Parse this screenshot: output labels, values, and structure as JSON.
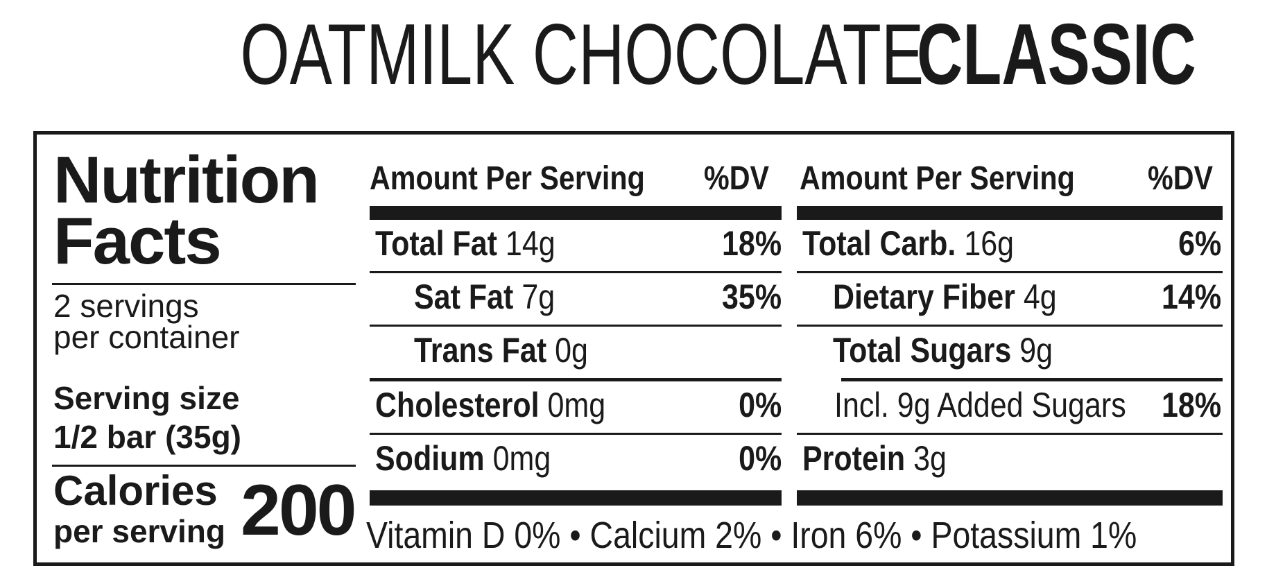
{
  "title": {
    "light": "OATMILK CHOCOLATE",
    "bold": "CLASSIC"
  },
  "nutrition": {
    "heading_line1": "Nutrition",
    "heading_line2": "Facts",
    "servings_line1": "2 servings",
    "servings_line2": "per container",
    "serving_size_label": "Serving size",
    "serving_size_value": "1/2 bar (35g)",
    "calories_label": "Calories",
    "calories_sub": "per serving",
    "calories_value": "200",
    "left_table": {
      "header_amount": "Amount Per Serving",
      "header_dv": "%DV",
      "rows": [
        {
          "name": "Total Fat",
          "amount": "14g",
          "dv": "18%"
        },
        {
          "name": "Sat Fat",
          "amount": "7g",
          "dv": "35%"
        },
        {
          "name": "Trans Fat",
          "amount": "0g",
          "dv": ""
        },
        {
          "name": "Cholesterol",
          "amount": "0mg",
          "dv": "0%"
        },
        {
          "name": "Sodium",
          "amount": "0mg",
          "dv": "0%"
        }
      ]
    },
    "right_table": {
      "header_amount": "Amount Per Serving",
      "header_dv": "%DV",
      "rows": [
        {
          "name": "Total Carb.",
          "amount": "16g",
          "dv": "6%"
        },
        {
          "name": "Dietary Fiber",
          "amount": "4g",
          "dv": "14%"
        },
        {
          "name": "Total Sugars",
          "amount": "9g",
          "dv": ""
        },
        {
          "name": "",
          "amount": "Incl. 9g Added Sugars",
          "dv": "18%"
        },
        {
          "name": "Protein",
          "amount": "3g",
          "dv": ""
        }
      ]
    },
    "vitamins": "Vitamin D 0% • Calcium 2% • Iron 6% • Potassium 1%"
  }
}
